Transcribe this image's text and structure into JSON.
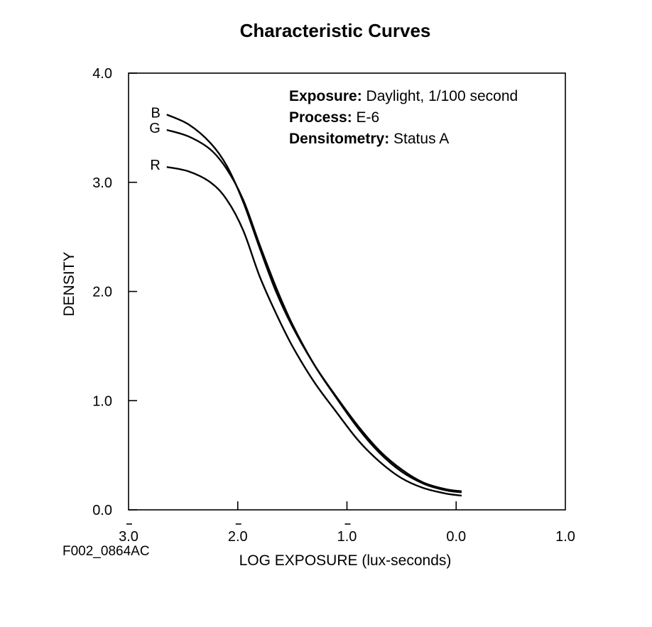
{
  "chart_data": {
    "type": "line",
    "title": "Characteristic Curves",
    "xlabel": "LOG EXPOSURE (lux-seconds)",
    "ylabel": "DENSITY",
    "xlim": [
      -3.0,
      1.0
    ],
    "ylim": [
      0.0,
      4.0
    ],
    "grid": false,
    "xticks": [
      {
        "value": -3.0,
        "label": "3.0",
        "bar": true
      },
      {
        "value": -2.0,
        "label": "2.0",
        "bar": true
      },
      {
        "value": -1.0,
        "label": "1.0",
        "bar": true
      },
      {
        "value": 0.0,
        "label": "0.0",
        "bar": false
      },
      {
        "value": 1.0,
        "label": "1.0",
        "bar": false
      }
    ],
    "yticks": [
      {
        "value": 0.0,
        "label": "0.0"
      },
      {
        "value": 1.0,
        "label": "1.0"
      },
      {
        "value": 2.0,
        "label": "2.0"
      },
      {
        "value": 3.0,
        "label": "3.0"
      },
      {
        "value": 4.0,
        "label": "4.0"
      }
    ],
    "series": [
      {
        "name": "B",
        "x": [
          -2.65,
          -2.45,
          -2.25,
          -2.1,
          -1.95,
          -1.8,
          -1.65,
          -1.5,
          -1.3,
          -1.1,
          -0.9,
          -0.7,
          -0.5,
          -0.3,
          -0.1,
          0.05
        ],
        "y": [
          3.62,
          3.53,
          3.36,
          3.15,
          2.82,
          2.4,
          2.0,
          1.68,
          1.33,
          1.04,
          0.77,
          0.54,
          0.37,
          0.25,
          0.19,
          0.17
        ]
      },
      {
        "name": "G",
        "x": [
          -2.65,
          -2.45,
          -2.25,
          -2.1,
          -1.95,
          -1.8,
          -1.65,
          -1.5,
          -1.3,
          -1.1,
          -0.9,
          -0.7,
          -0.5,
          -0.3,
          -0.1,
          0.05
        ],
        "y": [
          3.48,
          3.42,
          3.3,
          3.12,
          2.84,
          2.43,
          2.04,
          1.7,
          1.33,
          1.03,
          0.75,
          0.52,
          0.35,
          0.24,
          0.18,
          0.16
        ]
      },
      {
        "name": "R",
        "x": [
          -2.65,
          -2.45,
          -2.25,
          -2.1,
          -1.95,
          -1.8,
          -1.65,
          -1.5,
          -1.3,
          -1.1,
          -0.9,
          -0.7,
          -0.5,
          -0.3,
          -0.1,
          0.05
        ],
        "y": [
          3.14,
          3.1,
          3.0,
          2.84,
          2.56,
          2.14,
          1.8,
          1.5,
          1.17,
          0.9,
          0.64,
          0.44,
          0.29,
          0.2,
          0.15,
          0.13
        ]
      }
    ],
    "annotations": [
      {
        "bold": "Exposure:",
        "text": " Daylight, 1/100 second"
      },
      {
        "bold": "Process:",
        "text": " E-6"
      },
      {
        "bold": "Densitometry:",
        "text": " Status A"
      }
    ],
    "figure_id": "F002_0864AC"
  }
}
